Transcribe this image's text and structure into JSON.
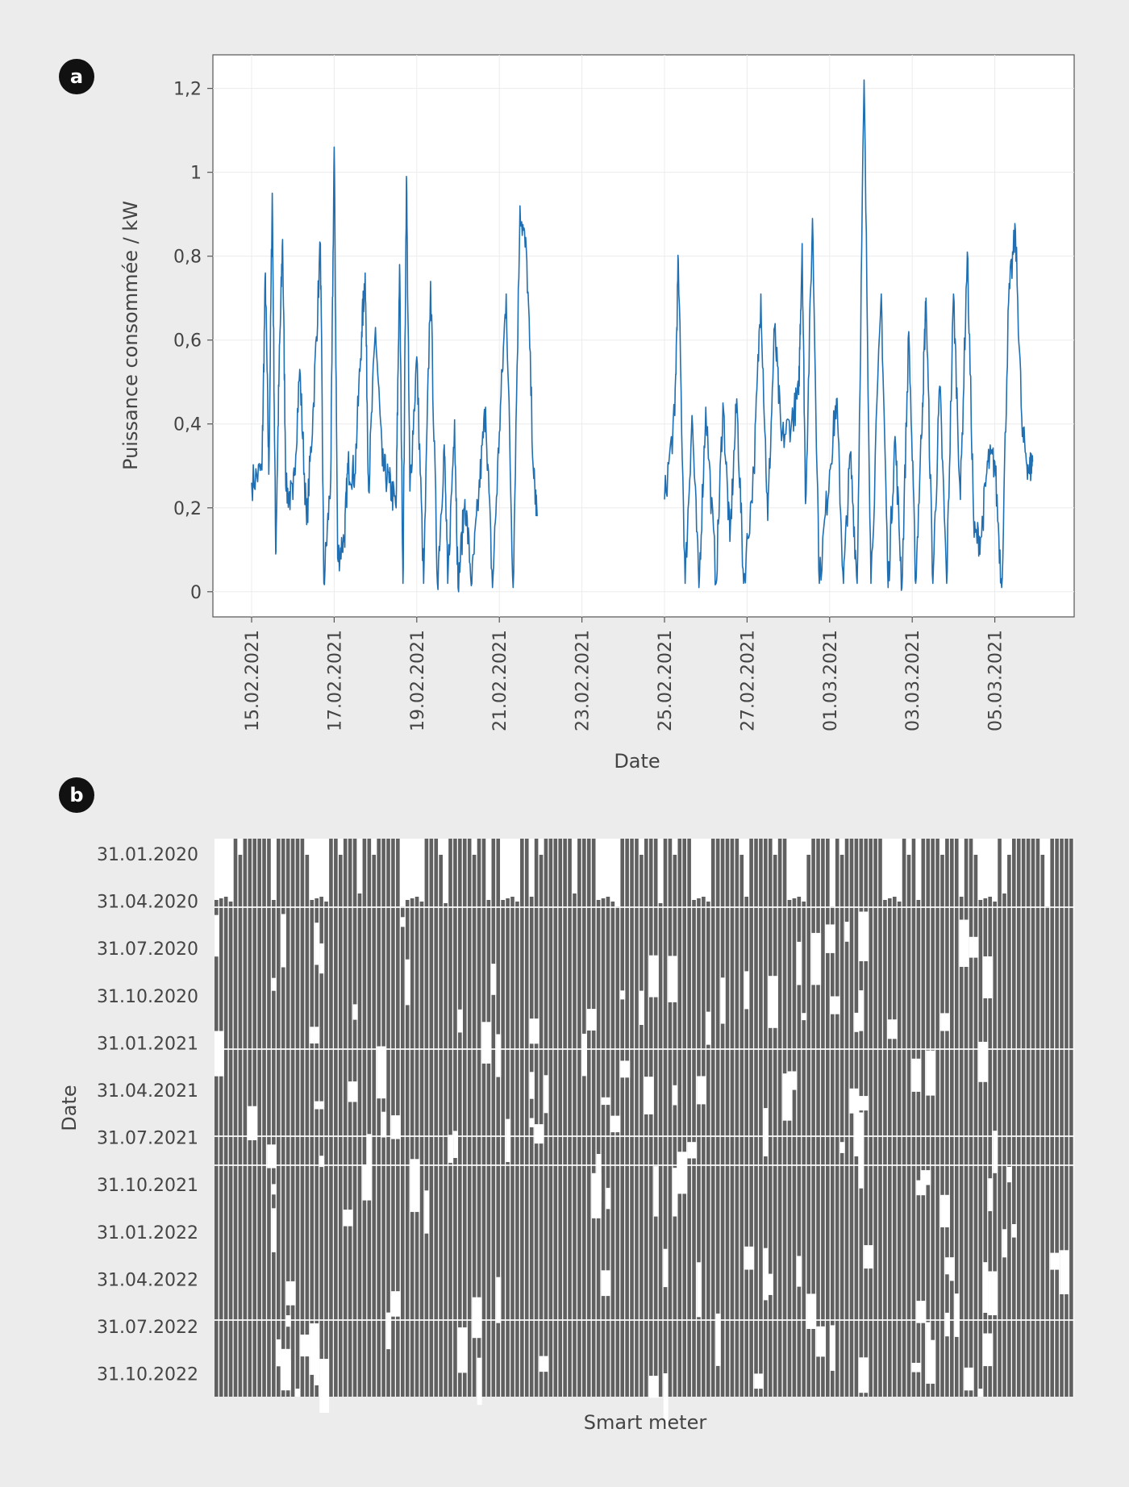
{
  "figure": {
    "panels": [
      {
        "label": "a"
      },
      {
        "label": "b"
      }
    ]
  },
  "chart_data": [
    {
      "panel": "a",
      "type": "line",
      "xlabel": "Date",
      "ylabel": "Puissance consommée / kW",
      "ylim": [
        -0.06,
        1.28
      ],
      "y_ticks": [
        0,
        0.2,
        0.4,
        0.6,
        0.8,
        1,
        1.2
      ],
      "y_tick_labels": [
        "0",
        "0,2",
        "0,4",
        "0,6",
        "0,8",
        "1",
        "1,2"
      ],
      "x_tick_labels": [
        "15.02.2021",
        "17.02.2021",
        "19.02.2021",
        "21.02.2021",
        "23.02.2021",
        "25.02.2021",
        "27.02.2021",
        "01.03.2021",
        "03.03.2021",
        "05.03.2021"
      ],
      "grid": true,
      "color": "#1f6fb2",
      "gap": [
        "21.02.2021 22:00",
        "25.02.2021 00:00"
      ],
      "series": [
        {
          "values": [
            [
              "15.02.2021 00:00",
              0.26
            ],
            [
              "15.02.2021 06:00",
              0.29
            ],
            [
              "15.02.2021 08:00",
              0.76
            ],
            [
              "15.02.2021 10:00",
              0.28
            ],
            [
              "15.02.2021 12:00",
              0.95
            ],
            [
              "15.02.2021 14:00",
              0.09
            ],
            [
              "15.02.2021 16:00",
              0.53
            ],
            [
              "15.02.2021 18:00",
              0.84
            ],
            [
              "15.02.2021 20:00",
              0.24
            ],
            [
              "16.02.2021 00:00",
              0.22
            ],
            [
              "16.02.2021 04:00",
              0.53
            ],
            [
              "16.02.2021 08:00",
              0.16
            ],
            [
              "16.02.2021 12:00",
              0.45
            ],
            [
              "16.02.2021 16:00",
              0.83
            ],
            [
              "16.02.2021 18:00",
              0.02
            ],
            [
              "16.02.2021 22:00",
              0.27
            ],
            [
              "17.02.2021 00:00",
              1.06
            ],
            [
              "17.02.2021 02:00",
              0.08
            ],
            [
              "17.02.2021 06:00",
              0.13
            ],
            [
              "17.02.2021 08:00",
              0.3
            ],
            [
              "17.02.2021 12:00",
              0.28
            ],
            [
              "17.02.2021 16:00",
              0.62
            ],
            [
              "17.02.2021 18:00",
              0.76
            ],
            [
              "17.02.2021 20:00",
              0.24
            ],
            [
              "18.02.2021 00:00",
              0.63
            ],
            [
              "18.02.2021 04:00",
              0.3
            ],
            [
              "18.02.2021 08:00",
              0.26
            ],
            [
              "18.02.2021 12:00",
              0.2
            ],
            [
              "18.02.2021 14:00",
              0.78
            ],
            [
              "18.02.2021 16:00",
              0.02
            ],
            [
              "18.02.2021 18:00",
              0.99
            ],
            [
              "18.02.2021 20:00",
              0.24
            ],
            [
              "19.02.2021 00:00",
              0.56
            ],
            [
              "19.02.2021 04:00",
              0.02
            ],
            [
              "19.02.2021 08:00",
              0.74
            ],
            [
              "19.02.2021 12:00",
              0.02
            ],
            [
              "19.02.2021 16:00",
              0.35
            ],
            [
              "19.02.2021 18:00",
              0.02
            ],
            [
              "19.02.2021 22:00",
              0.41
            ],
            [
              "20.02.2021 00:00",
              0.01
            ],
            [
              "20.02.2021 04:00",
              0.22
            ],
            [
              "20.02.2021 08:00",
              0.02
            ],
            [
              "20.02.2021 12:00",
              0.23
            ],
            [
              "20.02.2021 16:00",
              0.44
            ],
            [
              "20.02.2021 20:00",
              0.01
            ],
            [
              "21.02.2021 00:00",
              0.38
            ],
            [
              "21.02.2021 04:00",
              0.71
            ],
            [
              "21.02.2021 08:00",
              0.01
            ],
            [
              "21.02.2021 12:00",
              0.92
            ],
            [
              "21.02.2021 16:00",
              0.79
            ],
            [
              "21.02.2021 20:00",
              0.27
            ],
            [
              "21.02.2021 22:00",
              0.18
            ],
            [
              "25.02.2021 00:00",
              0.22
            ],
            [
              "25.02.2021 06:00",
              0.42
            ],
            [
              "25.02.2021 08:00",
              0.79
            ],
            [
              "25.02.2021 12:00",
              0.02
            ],
            [
              "25.02.2021 16:00",
              0.42
            ],
            [
              "25.02.2021 20:00",
              0.01
            ],
            [
              "26.02.2021 00:00",
              0.44
            ],
            [
              "26.02.2021 06:00",
              0.02
            ],
            [
              "26.02.2021 10:00",
              0.45
            ],
            [
              "26.02.2021 14:00",
              0.12
            ],
            [
              "26.02.2021 18:00",
              0.46
            ],
            [
              "26.02.2021 22:00",
              0.02
            ],
            [
              "27.02.2021 04:00",
              0.29
            ],
            [
              "27.02.2021 08:00",
              0.71
            ],
            [
              "27.02.2021 12:00",
              0.17
            ],
            [
              "27.02.2021 16:00",
              0.63
            ],
            [
              "27.02.2021 20:00",
              0.36
            ],
            [
              "28.02.2021 02:00",
              0.41
            ],
            [
              "28.02.2021 06:00",
              0.47
            ],
            [
              "28.02.2021 08:00",
              0.83
            ],
            [
              "28.02.2021 10:00",
              0.21
            ],
            [
              "28.02.2021 14:00",
              0.89
            ],
            [
              "28.02.2021 18:00",
              0.02
            ],
            [
              "01.03.2021 00:00",
              0.29
            ],
            [
              "01.03.2021 04:00",
              0.46
            ],
            [
              "01.03.2021 08:00",
              0.02
            ],
            [
              "01.03.2021 12:00",
              0.33
            ],
            [
              "01.03.2021 16:00",
              0.02
            ],
            [
              "01.03.2021 20:00",
              1.22
            ],
            [
              "02.03.2021 00:00",
              0.02
            ],
            [
              "02.03.2021 06:00",
              0.71
            ],
            [
              "02.03.2021 10:00",
              0.01
            ],
            [
              "02.03.2021 14:00",
              0.37
            ],
            [
              "02.03.2021 18:00",
              0.01
            ],
            [
              "02.03.2021 22:00",
              0.62
            ],
            [
              "03.03.2021 02:00",
              0.02
            ],
            [
              "03.03.2021 06:00",
              0.45
            ],
            [
              "03.03.2021 08:00",
              0.7
            ],
            [
              "03.03.2021 12:00",
              0.02
            ],
            [
              "03.03.2021 16:00",
              0.49
            ],
            [
              "03.03.2021 20:00",
              0.02
            ],
            [
              "04.03.2021 00:00",
              0.71
            ],
            [
              "04.03.2021 04:00",
              0.22
            ],
            [
              "04.03.2021 08:00",
              0.81
            ],
            [
              "04.03.2021 12:00",
              0.13
            ],
            [
              "04.03.2021 16:00",
              0.13
            ],
            [
              "04.03.2021 20:00",
              0.31
            ],
            [
              "05.03.2021 00:00",
              0.31
            ],
            [
              "05.03.2021 04:00",
              0.01
            ],
            [
              "05.03.2021 08:00",
              0.69
            ],
            [
              "05.03.2021 12:00",
              0.86
            ],
            [
              "05.03.2021 16:00",
              0.37
            ],
            [
              "05.03.2021 20:00",
              0.29
            ],
            [
              "05.03.2021 22:00",
              0.31
            ]
          ]
        }
      ]
    },
    {
      "panel": "b",
      "type": "heatmap",
      "xlabel": "Smart meter",
      "ylabel": "Date",
      "y_tick_labels": [
        "31.01.2020",
        "31.04.2020",
        "31.07.2020",
        "31.10.2020",
        "31.01.2021",
        "31.04.2021",
        "31.07.2021",
        "31.10.2021",
        "31.01.2022",
        "31.04.2022",
        "31.07.2022",
        "31.10.2022"
      ],
      "meter_count": 180,
      "legend": "none",
      "colors": {
        "data": "#606060",
        "missing": "#ffffff"
      }
    }
  ]
}
